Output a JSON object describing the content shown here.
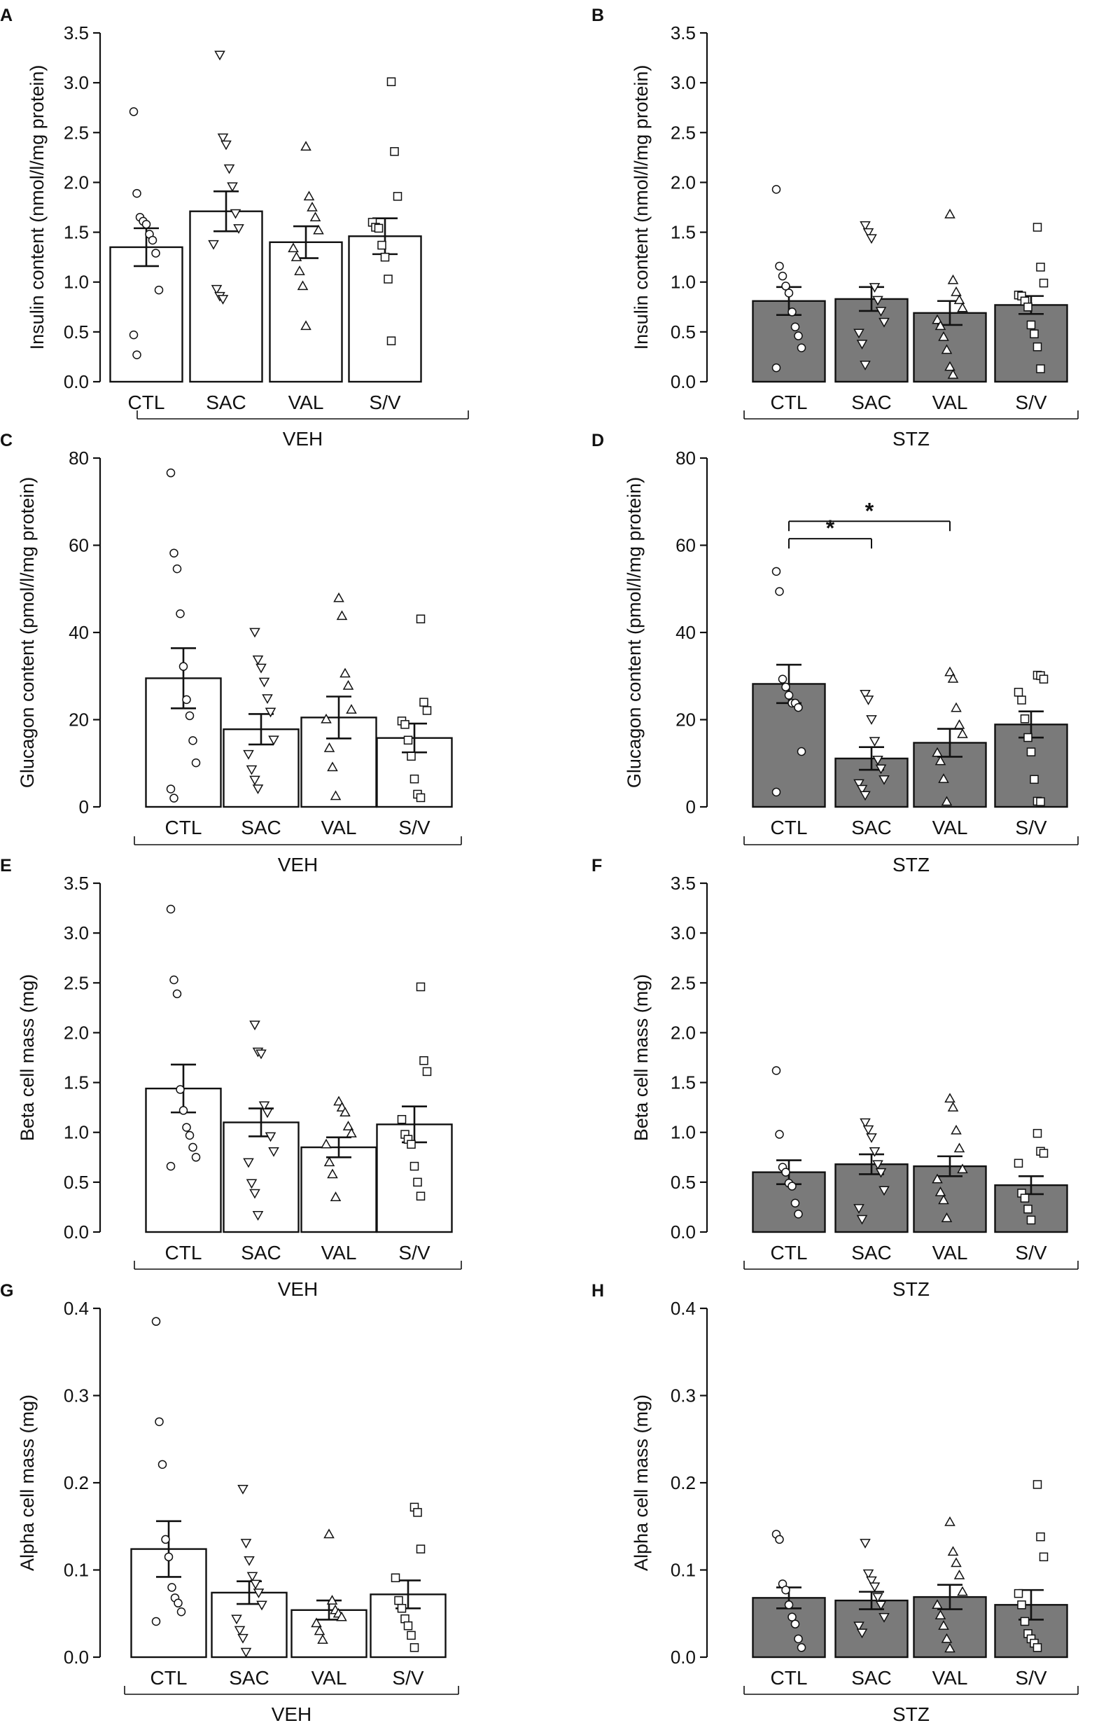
{
  "figure": {
    "fill_colors": {
      "VEH": "#ffffff",
      "STZ": "#7a7a7a"
    },
    "axis_color": "#111111",
    "marker_shapes": {
      "CTL": "circle",
      "SAC": "triangle-down",
      "VAL": "triangle-up",
      "S/V": "square"
    }
  },
  "chart_data": [
    {
      "panel": "A",
      "type": "bar",
      "group_label": "VEH",
      "fill": "white",
      "categories": [
        "CTL",
        "SAC",
        "VAL",
        "S/V"
      ],
      "ylabel": "Insulin content (nmol/l/mg protein)",
      "ylim": [
        0,
        3.5
      ],
      "yticks": [
        "0.0",
        "0.5",
        "1.0",
        "1.5",
        "2.0",
        "2.5",
        "3.0",
        "3.5"
      ],
      "means": [
        1.35,
        1.71,
        1.4,
        1.46
      ],
      "sem": [
        0.19,
        0.2,
        0.16,
        0.18
      ],
      "points": [
        [
          2.71,
          1.89,
          1.65,
          1.61,
          1.58,
          1.48,
          1.42,
          1.29,
          0.92,
          0.47,
          0.27
        ],
        [
          3.28,
          2.45,
          2.38,
          2.14,
          1.96,
          1.69,
          1.54,
          1.38,
          0.93,
          0.86,
          0.83
        ],
        [
          2.36,
          1.86,
          1.75,
          1.65,
          1.52,
          1.34,
          1.25,
          1.11,
          0.96,
          0.56
        ],
        [
          3.01,
          2.31,
          1.86,
          1.6,
          1.55,
          1.54,
          1.37,
          1.25,
          1.03,
          0.41
        ]
      ],
      "sig": []
    },
    {
      "panel": "B",
      "type": "bar",
      "group_label": "STZ",
      "fill": "grey",
      "categories": [
        "CTL",
        "SAC",
        "VAL",
        "S/V"
      ],
      "ylabel": "Insulin content (nmol/l/mg protein)",
      "ylim": [
        0,
        3.5
      ],
      "yticks": [
        "0.0",
        "0.5",
        "1.0",
        "1.5",
        "2.0",
        "2.5",
        "3.0",
        "3.5"
      ],
      "means": [
        0.81,
        0.83,
        0.69,
        0.77
      ],
      "sem": [
        0.14,
        0.12,
        0.12,
        0.09
      ],
      "points": [
        [
          1.93,
          1.16,
          1.06,
          0.96,
          0.89,
          0.7,
          0.55,
          0.46,
          0.34,
          0.14
        ],
        [
          1.57,
          1.5,
          1.44,
          0.95,
          0.82,
          0.71,
          0.6,
          0.49,
          0.38,
          0.17
        ],
        [
          1.68,
          1.02,
          0.9,
          0.82,
          0.74,
          0.62,
          0.56,
          0.45,
          0.32,
          0.15,
          0.07
        ],
        [
          1.55,
          1.15,
          0.99,
          0.87,
          0.86,
          0.81,
          0.75,
          0.57,
          0.48,
          0.35,
          0.13
        ]
      ],
      "sig": []
    },
    {
      "panel": "C",
      "type": "bar",
      "group_label": "VEH",
      "fill": "white",
      "categories": [
        "CTL",
        "SAC",
        "VAL",
        "S/V"
      ],
      "ylabel": "Glucagon content (pmol/l/mg protein)",
      "ylim": [
        0,
        80
      ],
      "yticks": [
        "0",
        "20",
        "40",
        "60",
        "80"
      ],
      "means": [
        29.5,
        17.8,
        20.5,
        15.8
      ],
      "sem": [
        6.9,
        3.5,
        4.8,
        3.3
      ],
      "points": [
        [
          76.6,
          58.2,
          54.6,
          44.3,
          32.2,
          24.6,
          20.9,
          15.2,
          10.1,
          4.1,
          2.0
        ],
        [
          40.1,
          33.8,
          31.9,
          28.7,
          24.9,
          21.8,
          15.4,
          12.1,
          8.6,
          6.2,
          4.2
        ],
        [
          47.9,
          43.8,
          30.6,
          27.8,
          22.3,
          20.1,
          13.5,
          9.1,
          2.5
        ],
        [
          43.1,
          24.0,
          22.1,
          19.7,
          18.9,
          15.3,
          11.6,
          6.4,
          2.9,
          2.1
        ]
      ],
      "sig": []
    },
    {
      "panel": "D",
      "type": "bar",
      "group_label": "STZ",
      "fill": "grey",
      "categories": [
        "CTL",
        "SAC",
        "VAL",
        "S/V"
      ],
      "ylabel": "Glucagon content (pmol/l/mg protein)",
      "ylim": [
        0,
        80
      ],
      "yticks": [
        "0",
        "20",
        "40",
        "60",
        "80"
      ],
      "means": [
        28.2,
        11.1,
        14.7,
        18.9
      ],
      "sem": [
        4.4,
        2.6,
        3.2,
        3.0
      ],
      "points": [
        [
          54.0,
          49.4,
          29.3,
          27.5,
          25.6,
          23.8,
          23.8,
          22.8,
          12.7,
          3.4
        ],
        [
          25.9,
          24.6,
          20.1,
          15.1,
          10.8,
          8.8,
          6.3,
          5.4,
          4.1,
          2.7
        ],
        [
          30.9,
          29.4,
          22.7,
          18.8,
          16.7,
          12.4,
          10.5,
          6.4,
          1.2
        ],
        [
          30.2,
          30.1,
          29.3,
          26.3,
          24.5,
          20.2,
          15.9,
          12.6,
          6.3,
          1.3,
          1.2
        ]
      ],
      "sig": [
        {
          "from": "CTL",
          "to": "VAL",
          "label": "*",
          "level": 65.5
        },
        {
          "from": "CTL",
          "to": "SAC",
          "label": "*",
          "level": 61.5
        }
      ]
    },
    {
      "panel": "E",
      "type": "bar",
      "group_label": "VEH",
      "fill": "white",
      "categories": [
        "CTL",
        "SAC",
        "VAL",
        "S/V"
      ],
      "ylabel": "Beta cell mass (mg)",
      "ylim": [
        0,
        3.5
      ],
      "yticks": [
        "0.0",
        "0.5",
        "1.0",
        "1.5",
        "2.0",
        "2.5",
        "3.0",
        "3.5"
      ],
      "means": [
        1.44,
        1.1,
        0.85,
        1.08
      ],
      "sem": [
        0.24,
        0.14,
        0.1,
        0.18
      ],
      "points": [
        [
          3.24,
          2.53,
          2.39,
          1.43,
          1.22,
          1.05,
          0.97,
          0.85,
          0.75,
          0.66
        ],
        [
          2.08,
          1.81,
          1.79,
          1.27,
          1.2,
          0.96,
          0.81,
          0.7,
          0.49,
          0.39,
          0.17
        ],
        [
          1.31,
          1.25,
          1.2,
          1.06,
          0.99,
          0.88,
          0.7,
          0.58,
          0.35
        ],
        [
          2.46,
          1.72,
          1.61,
          1.13,
          0.98,
          0.93,
          0.88,
          0.66,
          0.5,
          0.36
        ]
      ],
      "sig": []
    },
    {
      "panel": "F",
      "type": "bar",
      "group_label": "STZ",
      "fill": "grey",
      "categories": [
        "CTL",
        "SAC",
        "VAL",
        "S/V"
      ],
      "ylabel": "Beta cell mass (mg)",
      "ylim": [
        0,
        3.5
      ],
      "yticks": [
        "0.0",
        "0.5",
        "1.0",
        "1.5",
        "2.0",
        "2.5",
        "3.0",
        "3.5"
      ],
      "means": [
        0.6,
        0.68,
        0.66,
        0.47
      ],
      "sem": [
        0.12,
        0.1,
        0.1,
        0.09
      ],
      "points": [
        [
          1.62,
          0.98,
          0.65,
          0.6,
          0.49,
          0.46,
          0.29,
          0.18
        ],
        [
          1.1,
          1.03,
          0.95,
          0.81,
          0.68,
          0.6,
          0.42,
          0.24,
          0.13
        ],
        [
          1.34,
          1.25,
          1.02,
          0.84,
          0.63,
          0.53,
          0.4,
          0.32,
          0.14
        ],
        [
          0.99,
          0.81,
          0.79,
          0.69,
          0.39,
          0.34,
          0.23,
          0.12
        ]
      ],
      "sig": []
    },
    {
      "panel": "G",
      "type": "bar",
      "group_label": "VEH",
      "fill": "white",
      "categories": [
        "CTL",
        "SAC",
        "VAL",
        "S/V"
      ],
      "ylabel": "Alpha cell mass (mg)",
      "ylim": [
        0,
        0.4
      ],
      "yticks": [
        "0.0",
        "0.1",
        "0.2",
        "0.3",
        "0.4"
      ],
      "means": [
        0.124,
        0.074,
        0.054,
        0.072
      ],
      "sem": [
        0.032,
        0.013,
        0.011,
        0.016
      ],
      "points": [
        [
          0.385,
          0.27,
          0.221,
          0.135,
          0.115,
          0.08,
          0.068,
          0.062,
          0.052,
          0.041
        ],
        [
          0.193,
          0.131,
          0.111,
          0.093,
          0.084,
          0.074,
          0.06,
          0.044,
          0.031,
          0.022,
          0.006
        ],
        [
          0.141,
          0.065,
          0.054,
          0.05,
          0.046,
          0.039,
          0.03,
          0.02
        ],
        [
          0.172,
          0.166,
          0.124,
          0.091,
          0.065,
          0.056,
          0.044,
          0.036,
          0.025,
          0.011
        ]
      ],
      "sig": []
    },
    {
      "panel": "H",
      "type": "bar",
      "group_label": "STZ",
      "fill": "grey",
      "categories": [
        "CTL",
        "SAC",
        "VAL",
        "S/V"
      ],
      "ylabel": "Alpha cell mass (mg)",
      "ylim": [
        0,
        0.4
      ],
      "yticks": [
        "0.0",
        "0.1",
        "0.2",
        "0.3",
        "0.4"
      ],
      "means": [
        0.068,
        0.065,
        0.069,
        0.06
      ],
      "sem": [
        0.012,
        0.01,
        0.014,
        0.017
      ],
      "points": [
        [
          0.141,
          0.135,
          0.084,
          0.077,
          0.06,
          0.046,
          0.038,
          0.021,
          0.011
        ],
        [
          0.131,
          0.096,
          0.088,
          0.081,
          0.069,
          0.06,
          0.046,
          0.036,
          0.028
        ],
        [
          0.155,
          0.121,
          0.108,
          0.094,
          0.075,
          0.06,
          0.048,
          0.036,
          0.021,
          0.01
        ],
        [
          0.198,
          0.138,
          0.115,
          0.073,
          0.06,
          0.041,
          0.027,
          0.021,
          0.016,
          0.011
        ]
      ],
      "sig": []
    }
  ]
}
